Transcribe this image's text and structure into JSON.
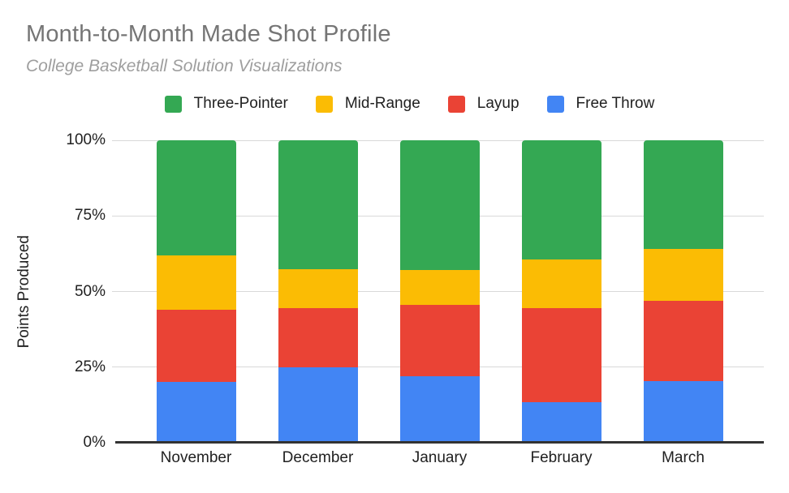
{
  "chart_data": {
    "type": "bar",
    "variant": "stacked-100-percent-column",
    "title": "Month-to-Month Made Shot Profile",
    "subtitle": "College Basketball Solution Visualizations",
    "categories": [
      "November",
      "December",
      "January",
      "February",
      "March"
    ],
    "series": [
      {
        "name": "Three-Pointer",
        "color": "#34A853",
        "values": [
          38,
          42.5,
          43,
          39.5,
          36
        ]
      },
      {
        "name": "Mid-Range",
        "color": "#FBBC04",
        "values": [
          18,
          13,
          11.5,
          16,
          17
        ]
      },
      {
        "name": "Layup",
        "color": "#EA4335",
        "values": [
          24,
          19.5,
          23.5,
          31,
          26.5
        ]
      },
      {
        "name": "Free Throw",
        "color": "#4285F4",
        "values": [
          20,
          25,
          22,
          13.5,
          20.5
        ]
      }
    ],
    "stack_order_bottom_to_top": [
      "Free Throw",
      "Layup",
      "Mid-Range",
      "Three-Pointer"
    ],
    "ylabel": "Points Produced",
    "yticks": [
      "0%",
      "25%",
      "50%",
      "75%",
      "100%"
    ],
    "ylim": [
      0,
      100
    ],
    "legend_position": "top",
    "grid": true
  },
  "colors": {
    "background": "#ffffff",
    "title_text": "#757575",
    "subtitle_text": "#9e9e9e",
    "axis_text": "#212121",
    "legend_text": "#212121",
    "gridline": "#d9d9d9",
    "baseline": "#333333"
  }
}
